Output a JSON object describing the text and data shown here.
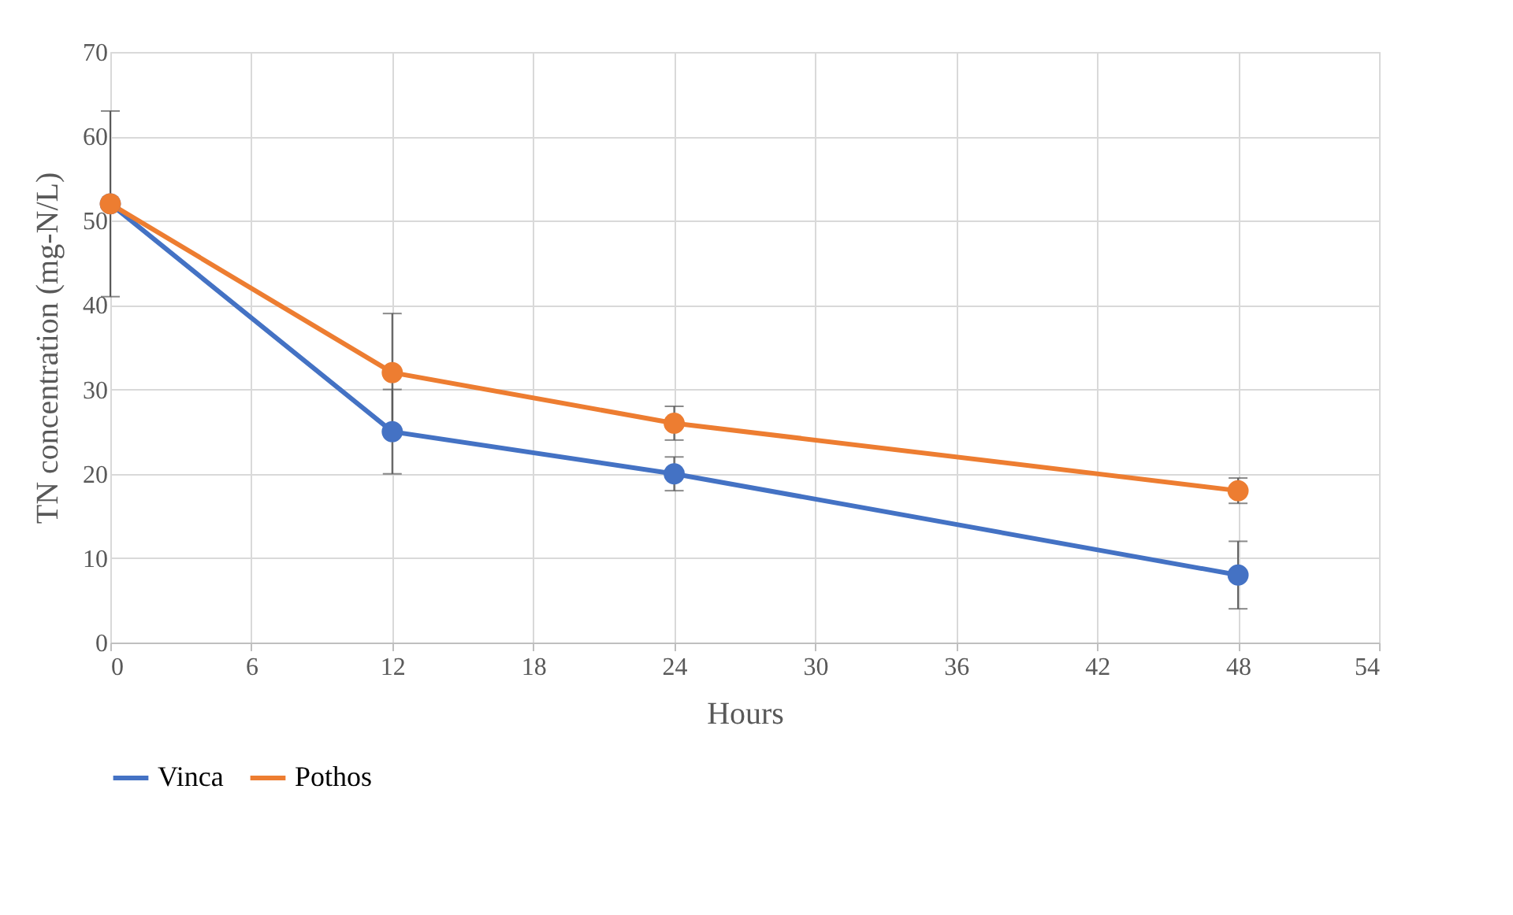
{
  "chart_data": {
    "type": "line",
    "xlabel": "Hours",
    "ylabel": "TN concentration (mg-N/L)",
    "x": [
      0,
      12,
      24,
      48
    ],
    "series": [
      {
        "name": "Vinca",
        "color": "#4472c4",
        "values": [
          52,
          25,
          20,
          8
        ],
        "errors": [
          11,
          5,
          2,
          4
        ]
      },
      {
        "name": "Pothos",
        "color": "#ed7d31",
        "values": [
          52,
          32,
          26,
          18
        ],
        "errors": [
          null,
          7,
          2,
          1.5
        ]
      }
    ],
    "xlim": [
      0,
      54
    ],
    "xticks": [
      0,
      6,
      12,
      18,
      24,
      30,
      36,
      42,
      48,
      54
    ],
    "ylim": [
      0,
      70
    ],
    "yticks": [
      0,
      10,
      20,
      30,
      40,
      50,
      60,
      70
    ],
    "grid": true,
    "legend": "bottom",
    "marker": "circle",
    "line_style": "solid"
  }
}
